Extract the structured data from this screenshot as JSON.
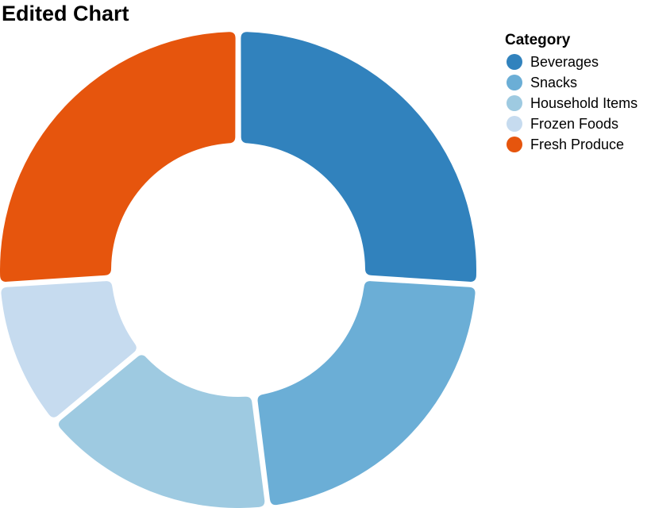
{
  "chart_data": {
    "type": "pie",
    "title": "Edited Chart",
    "legend_title": "Category",
    "legend_position": "top-right",
    "donut": true,
    "categories": [
      "Beverages",
      "Snacks",
      "Household Items",
      "Frozen Foods",
      "Fresh Produce"
    ],
    "values": [
      26,
      22,
      16,
      10,
      26
    ],
    "colors": [
      "#3182bd",
      "#6baed6",
      "#9ecae1",
      "#c6dbef",
      "#e6550d"
    ]
  }
}
